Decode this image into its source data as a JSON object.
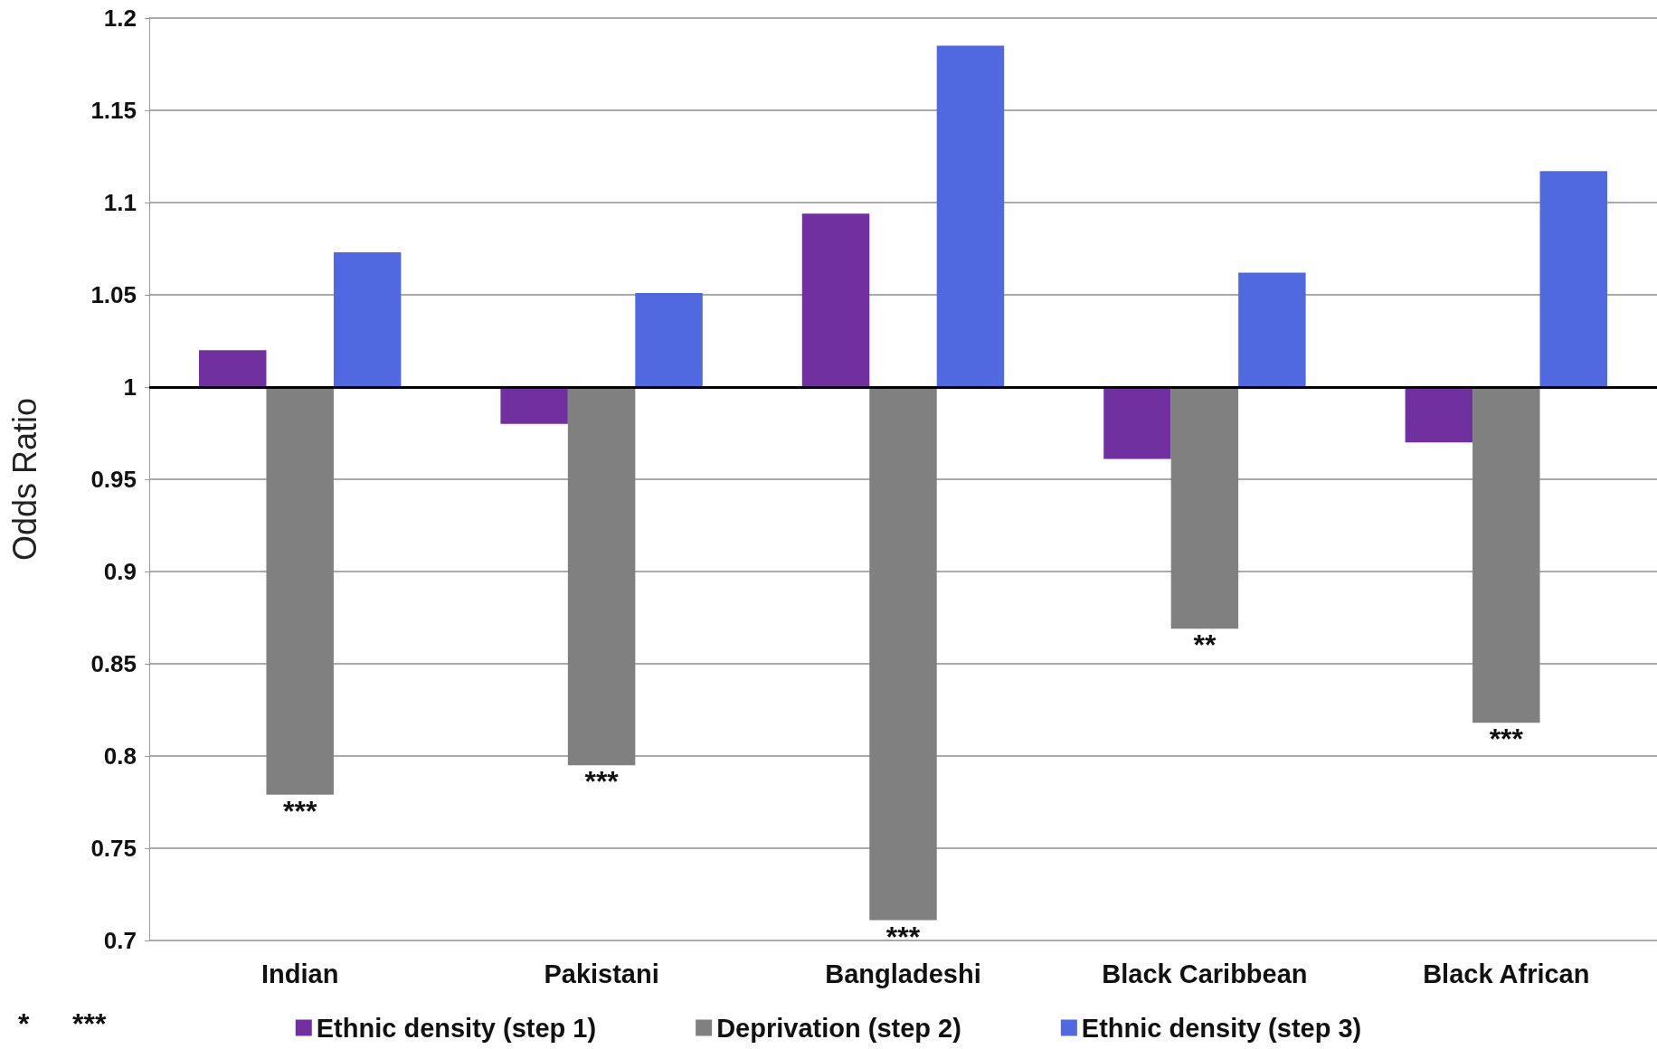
{
  "chart_data": {
    "type": "bar",
    "ylabel": "Odds Ratio",
    "categories": [
      "Indian",
      "Pakistani",
      "Bangladeshi",
      "Black Caribbean",
      "Black African"
    ],
    "series": [
      {
        "name": "Ethnic density (step 1)",
        "color": "#7030a0",
        "base": [
          1,
          1,
          1,
          1,
          1
        ],
        "values": [
          0.02,
          -0.02,
          0.094,
          -0.039,
          -0.03
        ]
      },
      {
        "name": "Deprivation (step 2)",
        "color": "#808080",
        "base": [
          1,
          1,
          1,
          1,
          1
        ],
        "values": [
          -0.221,
          -0.205,
          -0.289,
          -0.131,
          -0.182
        ]
      },
      {
        "name": "Ethnic density (step 3)",
        "color": "#5068e0",
        "base": [
          1,
          1,
          1,
          1,
          1
        ],
        "values": [
          0.073,
          0.051,
          0.185,
          0.062,
          0.117
        ]
      }
    ],
    "ylim": [
      0.7,
      1.2
    ],
    "yticks": [
      0.7,
      0.75,
      0.8,
      0.85,
      0.9,
      0.95,
      1,
      1.05,
      1.1,
      1.15,
      1.2
    ],
    "ref_lines": [
      {
        "axis": "y",
        "value": 1,
        "color": "#000000"
      }
    ],
    "annotations": [
      {
        "text": "***",
        "x": "Indian",
        "y": 0.779
      },
      "*",
      {
        "text": "***",
        "x": "Pakistani",
        "y": 0.795
      },
      {
        "text": "***",
        "x": "Bangladeshi",
        "y": 0.711
      },
      "***",
      {
        "text": "**",
        "x": "Black Caribbean",
        "y": 0.869
      },
      {
        "text": "***",
        "x": "Black African",
        "y": 0.818
      }
    ],
    "grid": "y",
    "legend": "bottom"
  }
}
